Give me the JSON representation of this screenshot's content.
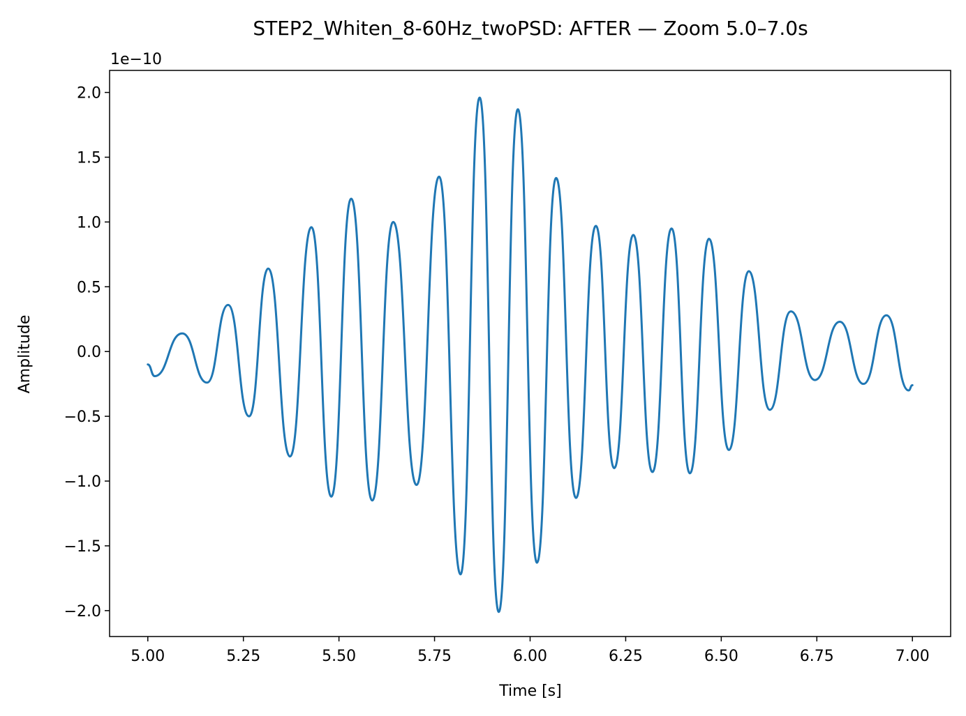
{
  "chart_data": {
    "type": "line",
    "title": "STEP2_Whiten_8-60Hz_twoPSD: AFTER — Zoom 5.0–7.0s",
    "xlabel": "Time [s]",
    "ylabel": "Amplitude",
    "offset_text": "1e−10",
    "xlim": [
      4.9,
      7.1
    ],
    "ylim": [
      -2.2,
      2.17
    ],
    "x_ticks": [
      5.0,
      5.25,
      5.5,
      5.75,
      6.0,
      6.25,
      6.5,
      6.75,
      7.0
    ],
    "x_tick_labels": [
      "5.00",
      "5.25",
      "5.50",
      "5.75",
      "6.00",
      "6.25",
      "6.50",
      "6.75",
      "7.00"
    ],
    "y_ticks": [
      2.0,
      1.5,
      1.0,
      0.5,
      0.0,
      -0.5,
      -1.0,
      -1.5,
      -2.0
    ],
    "y_tick_labels": [
      "2.0",
      "1.5",
      "1.0",
      "0.5",
      "0.0",
      "−0.5",
      "−1.0",
      "−1.5",
      "−2.0"
    ],
    "grid": false,
    "series": [
      {
        "color": "#1f77b4",
        "x": [
          5.0,
          5.018,
          5.09,
          5.155,
          5.21,
          5.265,
          5.315,
          5.372,
          5.428,
          5.48,
          5.532,
          5.587,
          5.642,
          5.703,
          5.762,
          5.818,
          5.868,
          5.918,
          5.968,
          6.018,
          6.068,
          6.12,
          6.172,
          6.22,
          6.27,
          6.32,
          6.37,
          6.418,
          6.468,
          6.52,
          6.572,
          6.627,
          6.682,
          6.745,
          6.81,
          6.872,
          6.932,
          6.99,
          7.0
        ],
        "y": [
          -0.1,
          -0.19,
          0.14,
          -0.24,
          0.36,
          -0.5,
          0.64,
          -0.81,
          0.96,
          -1.12,
          1.18,
          -1.15,
          1.0,
          -1.03,
          1.35,
          -1.72,
          1.96,
          -2.01,
          1.87,
          -1.63,
          1.34,
          -1.13,
          0.97,
          -0.9,
          0.9,
          -0.93,
          0.95,
          -0.94,
          0.87,
          -0.76,
          0.62,
          -0.45,
          0.31,
          -0.22,
          0.23,
          -0.25,
          0.28,
          -0.3,
          -0.26
        ]
      }
    ]
  }
}
